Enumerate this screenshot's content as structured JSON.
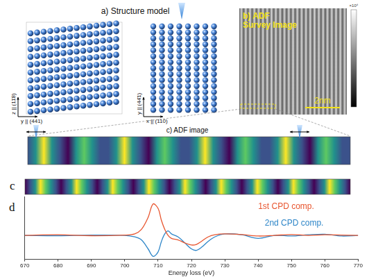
{
  "figure": {
    "panel_a_title": "a) Structure model",
    "left_model_vertical_axis": "z || (11̄8)",
    "left_model_horizontal_axis": "y || (441)",
    "middle_model_vertical_axis": "y || (44̄1)",
    "middle_model_horizontal_axis": "x || (110)",
    "panel_b_title": [
      "b) ADF",
      "Survey Image"
    ],
    "panel_b_scale_bar": "2nm",
    "panel_b_colorbar_label": "×10⁴",
    "panel_c_title": "c) ADF image",
    "lower_c_label": "c",
    "d_label": "d"
  },
  "chart_data": {
    "type": "line",
    "x_label": "Energy loss (eV)",
    "x": [
      670,
      680,
      690,
      700,
      703,
      705,
      707,
      708.5,
      710,
      711,
      712,
      713,
      714,
      716,
      718,
      720,
      721.5,
      723,
      725,
      727,
      730,
      735,
      740,
      745,
      750,
      755,
      760,
      765,
      770
    ],
    "series": [
      {
        "name": "1st CPD comp.",
        "color": "#e8552f",
        "values": [
          0,
          0.02,
          -0.01,
          0.01,
          0.05,
          0.2,
          0.6,
          1.05,
          0.9,
          0.5,
          0.2,
          0,
          -0.1,
          -0.15,
          -0.25,
          -0.32,
          -0.3,
          -0.2,
          -0.05,
          0.02,
          0.05,
          0.03,
          -0.02,
          0,
          0.03,
          0,
          0.02,
          0.01,
          0
        ]
      },
      {
        "name": "2nd CPD comp.",
        "color": "#2e86c8",
        "values": [
          0,
          -0.01,
          0.01,
          0,
          -0.05,
          -0.15,
          -0.45,
          -0.7,
          -0.55,
          -0.2,
          0.05,
          0.15,
          0.05,
          -0.05,
          -0.25,
          -0.45,
          -0.5,
          -0.4,
          -0.2,
          -0.05,
          0.05,
          0.02,
          -0.1,
          0,
          -0.02,
          0.02,
          0.04,
          -0.02,
          0
        ]
      }
    ],
    "xlim": [
      670,
      770
    ],
    "xticks": [
      670,
      680,
      690,
      700,
      710,
      720,
      730,
      740,
      750,
      760,
      770
    ],
    "ylim": [
      -0.8,
      1.3
    ],
    "tick_labels": "x",
    "grid": false
  }
}
